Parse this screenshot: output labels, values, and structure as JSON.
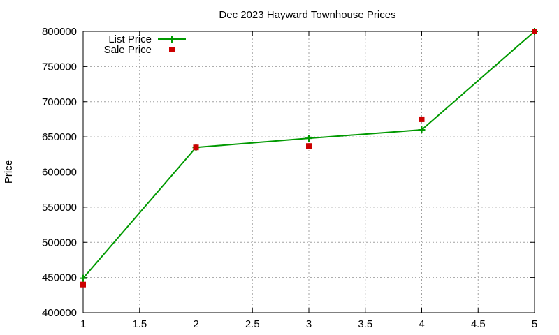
{
  "chart_data": {
    "type": "line",
    "title": "Dec 2023 Hayward Townhouse Prices",
    "xlabel": "",
    "ylabel": "Price",
    "xlim": [
      1,
      5
    ],
    "ylim": [
      400000,
      800000
    ],
    "x_ticks": [
      "1",
      "1.5",
      "2",
      "2.5",
      "3",
      "3.5",
      "4",
      "4.5",
      "5"
    ],
    "y_ticks": [
      "400000",
      "450000",
      "500000",
      "550000",
      "600000",
      "650000",
      "700000",
      "750000",
      "800000"
    ],
    "grid": true,
    "legend_position": "top-left",
    "series": [
      {
        "name": "List Price",
        "style": "line-with-plus-markers",
        "color": "#009900",
        "x": [
          1,
          2,
          3,
          4,
          5
        ],
        "y": [
          449000,
          635000,
          648000,
          660000,
          800000
        ]
      },
      {
        "name": "Sale Price",
        "style": "square-points",
        "color": "#cc0000",
        "x": [
          1,
          2,
          3,
          4,
          5
        ],
        "y": [
          440000,
          635000,
          637000,
          675000,
          800000
        ]
      }
    ]
  }
}
